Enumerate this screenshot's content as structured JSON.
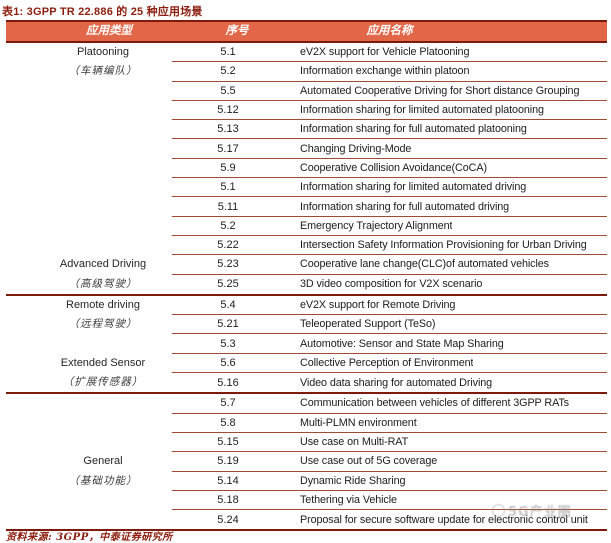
{
  "title": "表1: 3GPP TR 22.886 的 25 种应用场景",
  "colors": {
    "header_bg": "#E26749",
    "header_text": "#FFFFFF",
    "dark_rule": "#7E1A0C",
    "thin_rule": "#A04A33",
    "title_text": "#8C1E0F",
    "body_text": "#1C1C1C"
  },
  "table": {
    "headers": [
      "应用类型",
      "序号",
      "应用名称"
    ],
    "groups": [
      {
        "type_en": "Platooning",
        "type_zh": "（车辆编队）",
        "label_row_en": 0,
        "label_row_zh": 1,
        "full_separator_after": false,
        "rows": [
          [
            "5.1",
            "eV2X support for Vehicle Platooning"
          ],
          [
            "5.2",
            "Information exchange within platoon"
          ],
          [
            "5.5",
            "Automated Cooperative Driving for Short distance Grouping"
          ],
          [
            "5.12",
            "Information sharing for limited automated platooning"
          ],
          [
            "5.13",
            "Information sharing for full automated platooning"
          ],
          [
            "5.17",
            "Changing Driving-Mode"
          ]
        ]
      },
      {
        "type_en": "Advanced Driving",
        "type_zh": "（高级驾驶）",
        "label_row_en": 5,
        "label_row_zh": 6,
        "full_separator_after": true,
        "rows": [
          [
            "5.9",
            "Cooperative Collision Avoidance(CoCA)"
          ],
          [
            "5.1",
            "Information sharing for limited automated driving"
          ],
          [
            "5.11",
            "Information sharing for full automated driving"
          ],
          [
            "5.2",
            "Emergency Trajectory Alignment"
          ],
          [
            "5.22",
            "Intersection Safety Information Provisioning for Urban Driving"
          ],
          [
            "5.23",
            "Cooperative lane change(CLC)of automated vehicles"
          ],
          [
            "5.25",
            "3D video composition for V2X scenario"
          ]
        ]
      },
      {
        "type_en": "Remote driving",
        "type_zh": "（远程驾驶）",
        "label_row_en": 0,
        "label_row_zh": 1,
        "full_separator_after": false,
        "rows": [
          [
            "5.4",
            "eV2X support for Remote Driving"
          ],
          [
            "5.21",
            "Teleoperated Support (TeSo)"
          ]
        ]
      },
      {
        "type_en": "Extended Sensor",
        "type_zh": "（扩展传感器）",
        "label_row_en": 1,
        "label_row_zh": 2,
        "full_separator_after": true,
        "rows": [
          [
            "5.3",
            "Automotive: Sensor and State Map Sharing"
          ],
          [
            "5.6",
            "Collective Perception of Environment"
          ],
          [
            "5.16",
            "Video data sharing for automated Driving"
          ]
        ]
      },
      {
        "type_en": "General",
        "type_zh": "（基础功能）",
        "label_row_en": 3,
        "label_row_zh": 4,
        "full_separator_after": true,
        "rows": [
          [
            "5.7",
            "Communication between vehicles of different 3GPP RATs"
          ],
          [
            "5.8",
            "Multi-PLMN environment"
          ],
          [
            "5.15",
            "Use case on Multi-RAT"
          ],
          [
            "5.19",
            "Use case out of 5G coverage"
          ],
          [
            "5.14",
            "Dynamic Ride Sharing"
          ],
          [
            "5.18",
            "Tethering via Vehicle"
          ],
          [
            "5.24",
            "Proposal for secure software update for electronic control unit"
          ]
        ]
      }
    ]
  },
  "footer": {
    "text": "资料来源: 3GPP，中泰证券研究所"
  },
  "watermark": {
    "text": "5G产业圈"
  }
}
